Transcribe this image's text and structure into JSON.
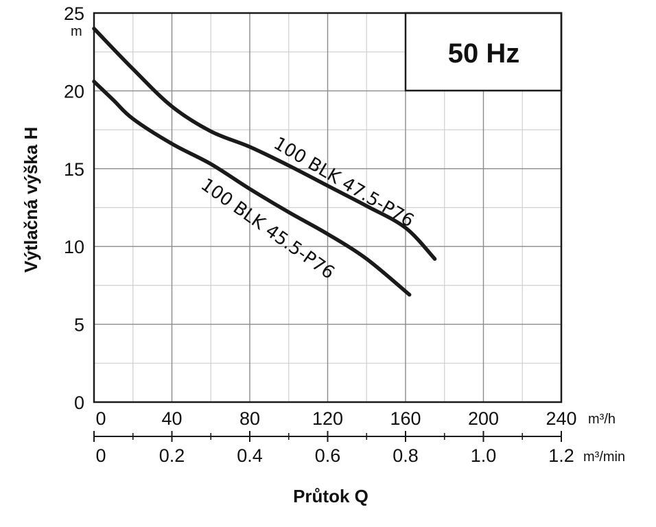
{
  "chart_data": {
    "type": "line",
    "frequency_label": "50 Hz",
    "ylabel": "Výtlačná výška H",
    "y_unit": "m",
    "ylim": [
      0,
      25
    ],
    "y_ticks": [
      0,
      5,
      10,
      15,
      20,
      25
    ],
    "xlabel": "Průtok Q",
    "x_primary_unit": "m³/h",
    "x_primary_ticks": [
      "0",
      "40",
      "80",
      "120",
      "160",
      "200",
      "240"
    ],
    "x_primary_lim": [
      0,
      240
    ],
    "x_secondary_unit": "m³/min",
    "x_secondary_ticks": [
      "0",
      "0.2",
      "0.4",
      "0.6",
      "0.8",
      "1.0",
      "1.2"
    ],
    "grid": true,
    "series": [
      {
        "name": "100 BLK 47.5-P76",
        "x": [
          0,
          20,
          40,
          60,
          80,
          100,
          120,
          140,
          160,
          175
        ],
        "y": [
          24.0,
          21.4,
          19.0,
          17.4,
          16.4,
          15.2,
          13.9,
          12.6,
          11.2,
          9.2
        ]
      },
      {
        "name": "100 BLK 45.5-P76",
        "x": [
          0,
          10,
          20,
          40,
          60,
          80,
          100,
          120,
          140,
          162
        ],
        "y": [
          20.6,
          19.4,
          18.2,
          16.6,
          15.3,
          13.7,
          12.2,
          10.8,
          9.2,
          6.9
        ]
      }
    ]
  }
}
